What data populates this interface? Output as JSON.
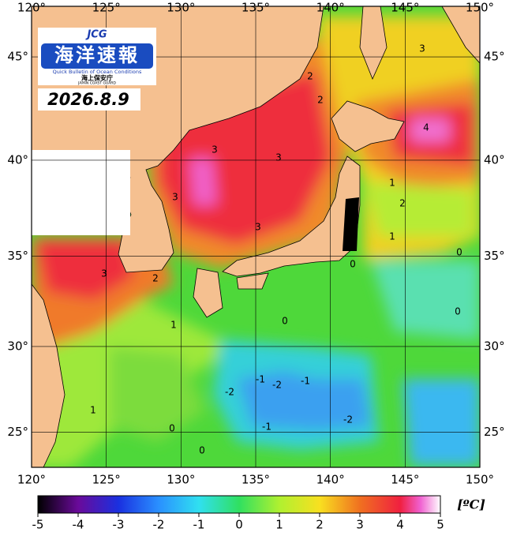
{
  "map": {
    "logo": {
      "brand": "JCG",
      "title": "海洋速報",
      "subtitle": "Quick Bulletin of Ocean Conditions",
      "agency": "海上保安庁",
      "agency_en": "JAPAN COAST GUARD"
    },
    "date": "2026.8.9",
    "xlim": [
      120,
      150
    ],
    "ylim": [
      22.9,
      47.3
    ],
    "xticks": [
      {
        "value": 120,
        "label": "120°"
      },
      {
        "value": 125,
        "label": "125°"
      },
      {
        "value": 130,
        "label": "130°"
      },
      {
        "value": 135,
        "label": "135°"
      },
      {
        "value": 140,
        "label": "140°"
      },
      {
        "value": 145,
        "label": "145°"
      },
      {
        "value": 150,
        "label": "150°"
      }
    ],
    "yticks": [
      {
        "value": 25,
        "label": "25°"
      },
      {
        "value": 30,
        "label": "30°"
      },
      {
        "value": 35,
        "label": "35°"
      },
      {
        "value": 40,
        "label": "40°"
      },
      {
        "value": 45,
        "label": "45°"
      }
    ],
    "contour_labels": [
      3,
      3,
      3,
      3,
      3,
      3,
      2,
      2,
      2,
      2,
      1,
      1,
      0,
      0,
      0,
      0,
      1,
      -1,
      -2,
      -1,
      -2,
      -1,
      -2,
      0,
      0,
      1,
      4
    ],
    "colorbar": {
      "lim": [
        -5,
        5
      ],
      "ticks": [
        -5,
        -4,
        -3,
        -2,
        -1,
        0,
        1,
        2,
        3,
        4,
        5
      ],
      "unit": "[ºC]"
    }
  }
}
